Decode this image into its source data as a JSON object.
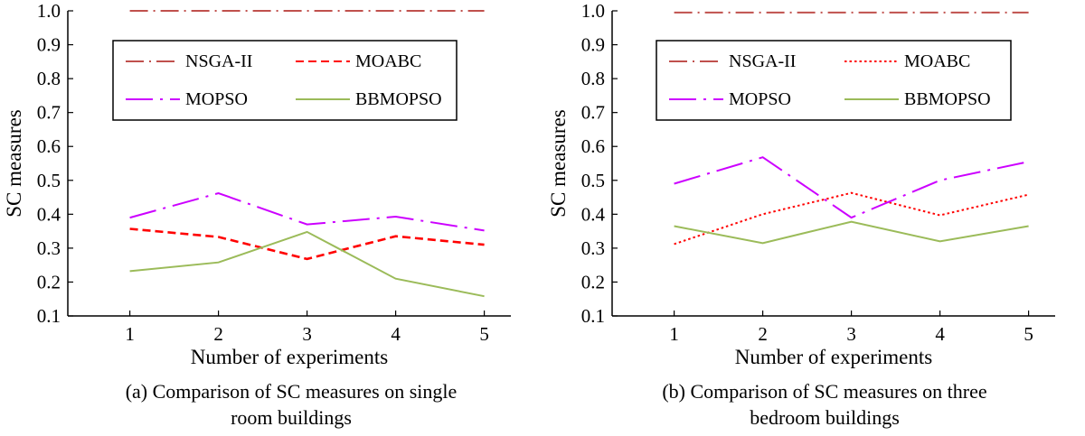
{
  "chart_data": [
    {
      "type": "line",
      "title": "(a) Comparison of SC measures on single room buildings",
      "caption_lines": [
        "(a) Comparison of SC measures on single",
        "room buildings"
      ],
      "xlabel": "Number of experiments",
      "ylabel": "SC measures",
      "x": [
        1,
        2,
        3,
        4,
        5
      ],
      "xlim": [
        0.3,
        5.3
      ],
      "ylim": [
        0.1,
        1.0
      ],
      "x_ticks": [
        "1",
        "2",
        "3",
        "4",
        "5"
      ],
      "y_ticks": [
        "0.1",
        "0.2",
        "0.3",
        "0.4",
        "0.5",
        "0.6",
        "0.7",
        "0.8",
        "0.9",
        "1.0"
      ],
      "legend_position": "upper-center",
      "series": [
        {
          "name": "NSGA-II",
          "values": [
            1.0,
            1.0,
            1.0,
            1.0,
            1.0
          ],
          "color": "#c0504d",
          "style": "dash-dot"
        },
        {
          "name": "MOABC",
          "values": [
            0.357,
            0.333,
            0.268,
            0.335,
            0.31
          ],
          "color": "#ff0000",
          "style": "dashed"
        },
        {
          "name": "MOPSO",
          "values": [
            0.39,
            0.462,
            0.37,
            0.393,
            0.352
          ],
          "color": "#cc00ff",
          "style": "long-dash-dot"
        },
        {
          "name": "BBMOPSO",
          "values": [
            0.232,
            0.258,
            0.348,
            0.21,
            0.158
          ],
          "color": "#9bbb59",
          "style": "solid"
        }
      ]
    },
    {
      "type": "line",
      "title": "(b) Comparison of SC measures on three bedroom buildings",
      "caption_lines": [
        "(b) Comparison of SC measures on three",
        "bedroom buildings"
      ],
      "xlabel": "Number of experiments",
      "ylabel": "SC measures",
      "x": [
        1,
        2,
        3,
        4,
        5
      ],
      "xlim": [
        0.3,
        5.3
      ],
      "ylim": [
        0.1,
        1.0
      ],
      "x_ticks": [
        "1",
        "2",
        "3",
        "4",
        "5"
      ],
      "y_ticks": [
        "0.1",
        "0.2",
        "0.3",
        "0.4",
        "0.5",
        "0.6",
        "0.7",
        "0.8",
        "0.9",
        "1.0"
      ],
      "legend_position": "upper-center",
      "series": [
        {
          "name": "NSGA-II",
          "values": [
            0.995,
            0.995,
            0.995,
            0.995,
            0.995
          ],
          "color": "#c0504d",
          "style": "dash-dot"
        },
        {
          "name": "MOABC",
          "values": [
            0.312,
            0.4,
            0.463,
            0.397,
            0.458
          ],
          "color": "#ff0000",
          "style": "dotted"
        },
        {
          "name": "MOPSO",
          "values": [
            0.49,
            0.568,
            0.39,
            0.5,
            0.555
          ],
          "color": "#cc00ff",
          "style": "long-dash-dot"
        },
        {
          "name": "BBMOPSO",
          "values": [
            0.365,
            0.315,
            0.378,
            0.32,
            0.365
          ],
          "color": "#9bbb59",
          "style": "solid"
        }
      ]
    }
  ]
}
